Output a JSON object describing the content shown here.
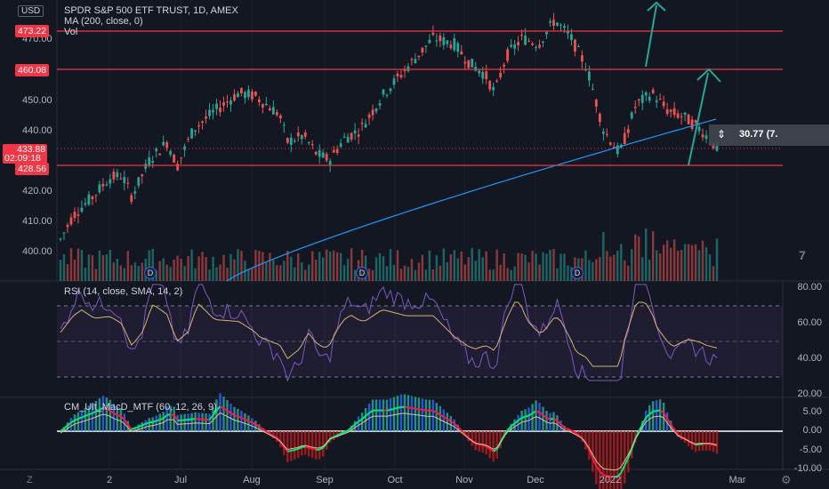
{
  "header": {
    "currency": "USD",
    "symbol_title": "SPDR S&P 500 ETF TRUST, 1D, AMEX",
    "ma_label": "MA (200, close, 0)",
    "vol_label": "Vol"
  },
  "price_axis": {
    "ticks": [
      "470.00",
      "450.00",
      "440.00",
      "420.00",
      "410.00",
      "400.00"
    ],
    "levels": [
      {
        "value": "473.22",
        "color": "#f23645"
      },
      {
        "value": "460.08",
        "color": "#f23645"
      },
      {
        "value": "428.56",
        "color": "#f23645"
      }
    ],
    "current_price": "433.88",
    "countdown": "02:09:18"
  },
  "measure_label": "30.77 (7.",
  "rsi": {
    "label": "RSI (14, close, SMA, 14, 2)",
    "ticks": [
      "80.00",
      "60.00",
      "40.00",
      "20.00"
    ]
  },
  "macd": {
    "label": "CM_Ult_MacD_MTF (60, 12, 26, 9)",
    "ticks": [
      "5.00",
      "0.00",
      "-5.00",
      "-10.00"
    ]
  },
  "time_axis": [
    "2",
    "Jul",
    "Aug",
    "Sep",
    "Oct",
    "Nov",
    "Dec",
    "2022",
    "Mar"
  ],
  "dividend_marker": "D",
  "colors": {
    "background": "#131722",
    "up": "#26a69a",
    "down": "#ef5350",
    "level_line": "#f23645",
    "ma_line": "#2196f3",
    "rsi_line": "#7e57c2",
    "rsi_sma": "#d7b46a",
    "macd_up": "#00e676",
    "macd_down": "#ff1744",
    "arrows": "#26a69a"
  },
  "icons": [
    "zoom-out-icon",
    "settings-gear-icon",
    "tradingview-logo-icon"
  ]
}
